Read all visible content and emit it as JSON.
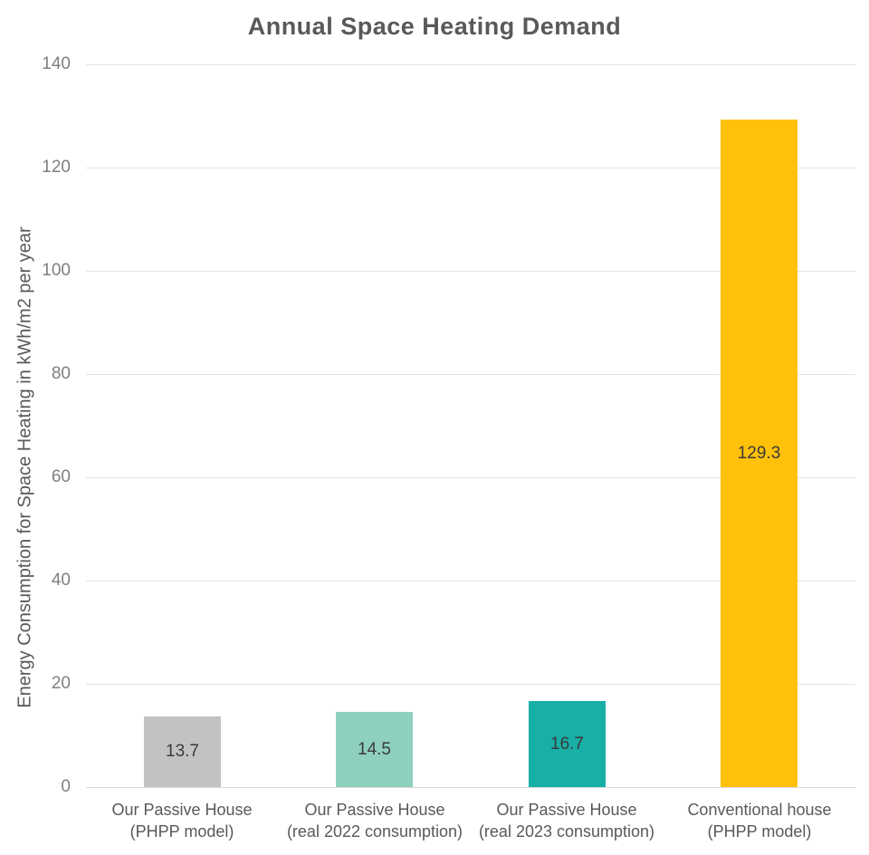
{
  "chart_data": {
    "type": "bar",
    "title": "Annual Space Heating Demand",
    "xlabel": "",
    "ylabel": "Energy Consumption for Space Heating in kWh/m2 per year",
    "ylim": [
      0,
      140
    ],
    "yticks": [
      0,
      20,
      40,
      60,
      80,
      100,
      120,
      140
    ],
    "grid": true,
    "legend": false,
    "categories": [
      "Our Passive House (PHPP model)",
      "Our Passive House (real 2022 consumption)",
      "Our Passive House (real 2023 consumption)",
      "Conventional house (PHPP model)"
    ],
    "x_tick_lines": [
      [
        "Our Passive House",
        "(PHPP model)"
      ],
      [
        "Our Passive House",
        "(real 2022 consumption)"
      ],
      [
        "Our Passive House",
        "(real 2023 consumption)"
      ],
      [
        "Conventional house",
        "(PHPP model)"
      ]
    ],
    "values": [
      13.7,
      14.5,
      16.7,
      129.3
    ],
    "bar_colors": [
      "#C3C2C2",
      "#8ECFBE",
      "#17AFA6",
      "#FFC10A"
    ]
  },
  "style": {
    "colors": {
      "bg": "#FFFFFF",
      "title": "#595959",
      "tick": "#7F7F7F",
      "catlabel": "#595959",
      "value": "#3A3A3A",
      "grid": "#E2E2E2",
      "baseline": "#D9D9D9"
    }
  }
}
